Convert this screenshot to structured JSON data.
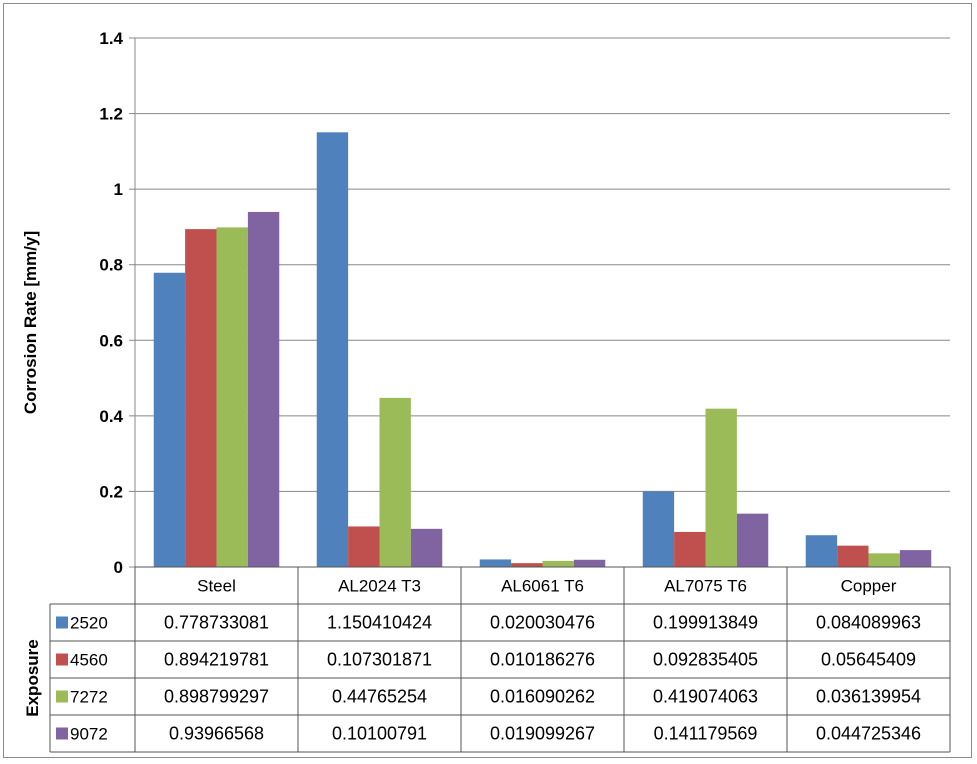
{
  "chart_data": {
    "type": "bar",
    "title": "",
    "ylabel": "Corrosion Rate [mm/y]",
    "legend_title": "Exposure",
    "ylim": [
      0,
      1.4
    ],
    "yticks": [
      "0",
      "0.2",
      "0.4",
      "0.6",
      "0.8",
      "1",
      "1.2",
      "1.4"
    ],
    "grid": true,
    "legend_placement": "data-table",
    "categories": [
      "Steel",
      "AL2024 T3",
      "AL6061 T6",
      "AL7075 T6",
      "Copper"
    ],
    "series": [
      {
        "name": "2520",
        "color": "#4F81BD",
        "values": [
          0.778733081,
          1.150410424,
          0.020030476,
          0.199913849,
          0.084089963
        ],
        "labels": [
          "0.778733081",
          "1.150410424",
          "0.020030476",
          "0.199913849",
          "0.084089963"
        ]
      },
      {
        "name": "4560",
        "color": "#C0504D",
        "values": [
          0.894219781,
          0.107301871,
          0.010186276,
          0.092835405,
          0.05645409
        ],
        "labels": [
          "0.894219781",
          "0.107301871",
          "0.010186276",
          "0.092835405",
          "0.05645409"
        ]
      },
      {
        "name": "7272",
        "color": "#9BBB59",
        "values": [
          0.898799297,
          0.44765254,
          0.016090262,
          0.419074063,
          0.036139954
        ],
        "labels": [
          "0.898799297",
          "0.44765254",
          "0.016090262",
          "0.419074063",
          "0.036139954"
        ]
      },
      {
        "name": "9072",
        "color": "#8064A2",
        "values": [
          0.93966568,
          0.10100791,
          0.019099267,
          0.141179569,
          0.044725346
        ],
        "labels": [
          "0.93966568",
          "0.10100791",
          "0.019099267",
          "0.141179569",
          "0.044725346"
        ]
      }
    ]
  }
}
